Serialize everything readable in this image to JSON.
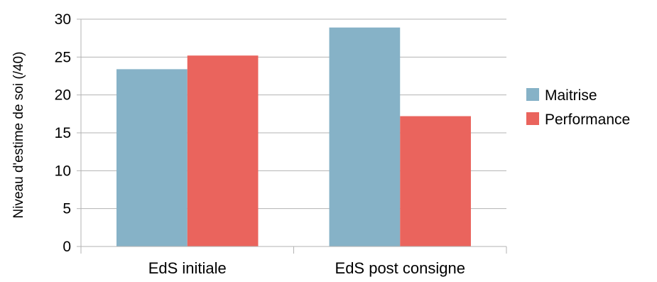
{
  "chart_data": {
    "type": "bar",
    "title": "",
    "xlabel": "",
    "ylabel": "Niveau d'estime de soi (/40)",
    "categories": [
      "EdS initiale",
      "EdS post consigne"
    ],
    "series": [
      {
        "name": "Maitrise",
        "values": [
          23.4,
          28.9
        ],
        "color": "#86b2c7"
      },
      {
        "name": "Performance",
        "values": [
          25.2,
          17.2
        ],
        "color": "#ea645d"
      }
    ],
    "ylim": [
      0,
      30
    ],
    "yticks": [
      0,
      5,
      10,
      15,
      20,
      25,
      30
    ],
    "grid": true,
    "grid_color": "#b3b3b3",
    "legend_position": "right"
  }
}
